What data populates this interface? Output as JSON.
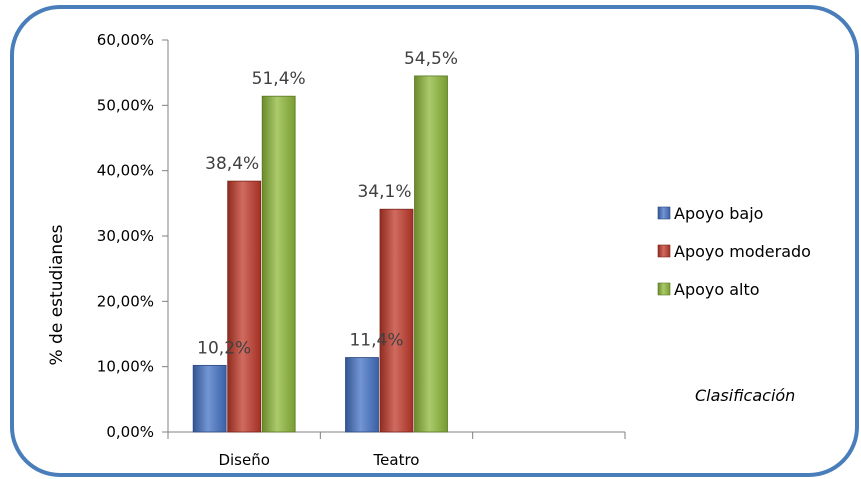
{
  "chart_data": {
    "type": "bar",
    "categories": [
      "Diseño",
      "Teatro",
      ""
    ],
    "series": [
      {
        "name": "Apoyo bajo",
        "values": [
          10.2,
          11.4,
          null
        ],
        "labels": [
          "10,2%",
          "11,4%",
          ""
        ],
        "color": "#4472C4"
      },
      {
        "name": "Apoyo moderado",
        "values": [
          38.4,
          34.1,
          null
        ],
        "labels": [
          "38,4%",
          "34,1%",
          ""
        ],
        "color": "#C0392B"
      },
      {
        "name": "Apoyo alto",
        "values": [
          51.4,
          54.5,
          null
        ],
        "labels": [
          "51,4%",
          "54,5%",
          ""
        ],
        "color": "#8DB83A"
      }
    ],
    "ylabel": "% de estudianes",
    "ylim": [
      0,
      60
    ],
    "yticks": [
      0,
      10,
      20,
      30,
      40,
      50,
      60
    ],
    "ytick_labels": [
      "0,00%",
      "10,00%",
      "20,00%",
      "30,00%",
      "40,00%",
      "50,00%",
      "60,00%"
    ],
    "legend_position": "right",
    "annotation": "Clasificación",
    "grid": false,
    "frame_color": "#4A7EBB"
  }
}
